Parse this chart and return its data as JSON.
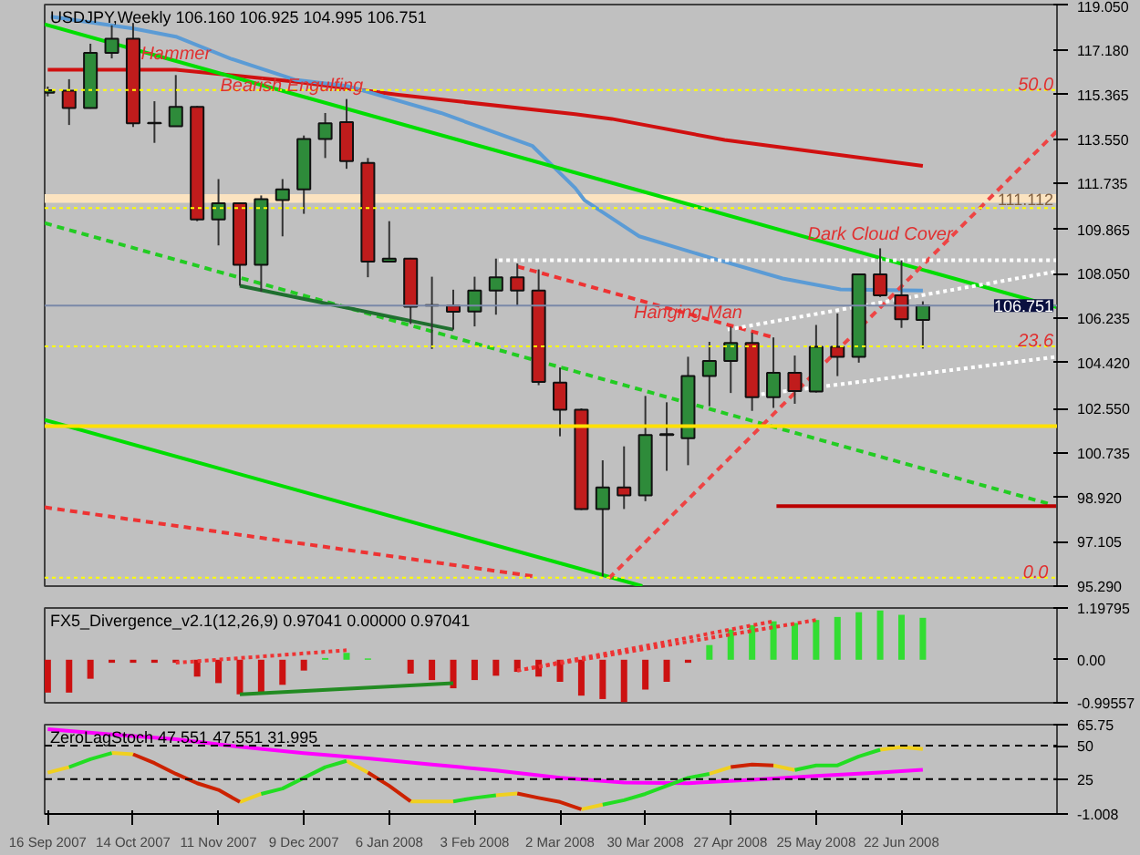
{
  "chart_data": [
    {
      "type": "candlestick",
      "title": "USDJPY,Weekly  106.160 106.925 104.995 106.751",
      "tick_labels": "y",
      "x": [
        "2007-09-16",
        "2007-09-23",
        "2007-09-30",
        "2007-10-07",
        "2007-10-14",
        "2007-10-21",
        "2007-10-28",
        "2007-11-04",
        "2007-11-11",
        "2007-11-18",
        "2007-11-25",
        "2007-12-02",
        "2007-12-09",
        "2007-12-16",
        "2007-12-23",
        "2007-12-30",
        "2008-01-06",
        "2008-01-13",
        "2008-01-20",
        "2008-01-27",
        "2008-02-03",
        "2008-02-10",
        "2008-02-17",
        "2008-02-24",
        "2008-03-02",
        "2008-03-09",
        "2008-03-16",
        "2008-03-23",
        "2008-03-30",
        "2008-04-06",
        "2008-04-13",
        "2008-04-20",
        "2008-04-27",
        "2008-05-04",
        "2008-05-11",
        "2008-05-18",
        "2008-05-25",
        "2008-06-01",
        "2008-06-08",
        "2008-06-15",
        "2008-06-22",
        "2008-06-29"
      ],
      "ohlc": [
        [
          115.45,
          115.7,
          115.3,
          115.55
        ],
        [
          115.53,
          116.0,
          114.13,
          114.82
        ],
        [
          114.82,
          117.45,
          114.8,
          117.08
        ],
        [
          117.08,
          118.2,
          116.85,
          117.65
        ],
        [
          117.65,
          118.3,
          114.05,
          114.2
        ],
        [
          114.2,
          115.1,
          113.4,
          114.22
        ],
        [
          114.08,
          116.17,
          114.08,
          114.87
        ],
        [
          114.87,
          114.9,
          110.2,
          110.27
        ],
        [
          110.27,
          111.92,
          109.21,
          110.93
        ],
        [
          110.93,
          110.93,
          107.56,
          108.42
        ],
        [
          108.42,
          111.25,
          107.32,
          111.1
        ],
        [
          111.06,
          111.92,
          109.58,
          111.5
        ],
        [
          111.5,
          113.7,
          110.5,
          113.56
        ],
        [
          113.56,
          114.62,
          112.78,
          114.2
        ],
        [
          114.25,
          115.19,
          112.34,
          112.65
        ],
        [
          112.58,
          112.78,
          107.91,
          108.55
        ],
        [
          108.55,
          110.2,
          108.55,
          108.67
        ],
        [
          108.67,
          108.7,
          106.0,
          106.7
        ],
        [
          106.75,
          107.93,
          104.98,
          106.77
        ],
        [
          106.75,
          107.4,
          105.77,
          106.5
        ],
        [
          106.51,
          107.93,
          105.9,
          107.37
        ],
        [
          107.37,
          108.67,
          106.38,
          107.91
        ],
        [
          107.91,
          108.47,
          106.75,
          107.37
        ],
        [
          107.37,
          108.23,
          103.5,
          103.63
        ],
        [
          103.6,
          104.22,
          101.41,
          102.5
        ],
        [
          102.5,
          102.55,
          98.4,
          98.44
        ],
        [
          98.44,
          100.43,
          95.68,
          99.32
        ],
        [
          99.32,
          101.0,
          98.44,
          99.0
        ],
        [
          99.0,
          103.06,
          98.76,
          101.46
        ],
        [
          101.46,
          102.8,
          100.0,
          101.5
        ],
        [
          101.33,
          104.66,
          100.23,
          103.87
        ],
        [
          103.87,
          105.27,
          102.64,
          104.49
        ],
        [
          104.49,
          105.89,
          103.18,
          105.22
        ],
        [
          105.22,
          105.64,
          102.45,
          103.01
        ],
        [
          103.01,
          105.45,
          102.57,
          104.0
        ],
        [
          104.0,
          104.71,
          102.74,
          103.26
        ],
        [
          103.24,
          105.96,
          103.2,
          105.07
        ],
        [
          105.07,
          106.43,
          103.87,
          104.66
        ],
        [
          104.66,
          108.06,
          104.42,
          108.03
        ],
        [
          108.03,
          109.09,
          107.1,
          107.17
        ],
        [
          107.17,
          108.6,
          105.84,
          106.19
        ],
        [
          106.16,
          106.925,
          104.995,
          106.751
        ]
      ],
      "colors": [
        "#2e8b3a",
        "#c01c1c",
        "#2e8b3a",
        "#2e8b3a",
        "#c01c1c",
        "#c01c1c",
        "#2e8b3a",
        "#c01c1c",
        "#2e8b3a",
        "#c01c1c",
        "#2e8b3a",
        "#2e8b3a",
        "#2e8b3a",
        "#2e8b3a",
        "#c01c1c",
        "#c01c1c",
        "#2e8b3a",
        "#c01c1c",
        "#2e8b3a",
        "#c01c1c",
        "#2e8b3a",
        "#2e8b3a",
        "#c01c1c",
        "#c01c1c",
        "#c01c1c",
        "#c01c1c",
        "#2e8b3a",
        "#c01c1c",
        "#2e8b3a",
        "#2e8b3a",
        "#2e8b3a",
        "#2e8b3a",
        "#2e8b3a",
        "#c01c1c",
        "#2e8b3a",
        "#c01c1c",
        "#2e8b3a",
        "#c01c1c",
        "#2e8b3a",
        "#c01c1c",
        "#c01c1c",
        "#2e8b3a"
      ],
      "series": [
        {
          "type": "line",
          "color": "#d01010",
          "line_style": "solid",
          "x": [
            "2007-09-16",
            "2007-10-28",
            "2007-12-06",
            "2008-01-09",
            "2008-03-07",
            "2008-03-19",
            "2008-04-25",
            "2008-06-29"
          ],
          "values": [
            116.39,
            116.39,
            115.9,
            115.36,
            114.57,
            114.38,
            113.52,
            112.46
          ]
        },
        {
          "type": "line",
          "color": "#5b9bd5",
          "line_style": "solid",
          "x": [
            "2007-09-17",
            "2007-10-14",
            "2007-10-28",
            "2007-11-15",
            "2007-12-06",
            "2007-12-23",
            "2008-01-23",
            "2008-02-22",
            "2008-03-07",
            "2008-03-10",
            "2008-03-28",
            "2008-04-20",
            "2008-05-14",
            "2008-06-02",
            "2008-06-29"
          ],
          "values": [
            118.56,
            118.07,
            117.74,
            116.84,
            115.98,
            115.73,
            114.62,
            113.27,
            111.55,
            111.06,
            109.58,
            108.72,
            107.86,
            107.41,
            107.37
          ]
        },
        {
          "type": "line",
          "color": "#00dd00",
          "line_style": "solid",
          "x": [
            "2007-09-15",
            "2008-08-12"
          ],
          "values": [
            118.24,
            106.68
          ]
        },
        {
          "type": "line",
          "color": "#00dd00",
          "line_style": "solid",
          "x": [
            "2007-09-15",
            "2008-03-29"
          ],
          "values": [
            102.08,
            95.29
          ]
        },
        {
          "type": "line",
          "color": "#22cc22",
          "line_style": "dashed",
          "x": [
            "2007-09-15",
            "2008-08-10"
          ],
          "values": [
            110.12,
            98.63
          ]
        },
        {
          "type": "line",
          "color": "#ee3333",
          "line_style": "dashed",
          "x": [
            "2007-09-15",
            "2008-02-23"
          ],
          "values": [
            98.51,
            95.68
          ]
        },
        {
          "type": "line",
          "color": "#ee4444",
          "line_style": "dashed",
          "x": [
            "2008-03-18",
            "2008-08-12"
          ],
          "values": [
            95.6,
            113.88
          ]
        },
        {
          "type": "line",
          "color": "#ee3333",
          "line_style": "dashed",
          "x": [
            "2008-02-17",
            "2008-05-11"
          ],
          "values": [
            108.35,
            105.45
          ]
        },
        {
          "type": "line",
          "color": "#ffffff",
          "line_style": "dotted",
          "x": [
            "2008-04-26",
            "2008-08-12"
          ],
          "values": [
            105.77,
            108.15
          ]
        },
        {
          "type": "line",
          "color": "#ffffff",
          "line_style": "dotted",
          "x": [
            "2008-05-07",
            "2008-08-12"
          ],
          "values": [
            103.13,
            104.66
          ]
        },
        {
          "type": "line",
          "color": "#ffffff",
          "line_style": "dotted",
          "x": [
            "2008-02-11",
            "2008-08-12"
          ],
          "values": [
            108.6,
            108.6
          ]
        },
        {
          "type": "line",
          "color": "#bb0000",
          "line_style": "solid",
          "x": [
            "2008-05-12",
            "2008-08-12"
          ],
          "values": [
            98.56,
            98.56
          ]
        },
        {
          "type": "line",
          "color": "#1f6f2f",
          "line_style": "solid",
          "x": [
            "2007-11-18",
            "2008-01-27"
          ],
          "values": [
            107.56,
            105.77
          ]
        }
      ],
      "ref_lines": [
        {
          "axis": "y",
          "value": 115.56,
          "color": "#ffff00",
          "line_style": "dotted"
        },
        {
          "axis": "y",
          "value": 110.74,
          "color": "#ffff00",
          "line_style": "dotted"
        },
        {
          "axis": "y",
          "value": 105.08,
          "color": "#ffff00",
          "line_style": "dotted"
        },
        {
          "axis": "y",
          "value": 95.63,
          "color": "#ffff00",
          "line_style": "dotted"
        },
        {
          "axis": "y",
          "value": 101.83,
          "color": "#ffe000",
          "line_style": "solid"
        },
        {
          "axis": "y",
          "value": 106.751,
          "label": "106.751",
          "color": "#7a88a8",
          "line_style": "solid"
        }
      ],
      "bands": [
        {
          "axis": "y",
          "from": 110.95,
          "to": 111.3,
          "label": "111.112",
          "color": "#fbe3c0"
        }
      ],
      "annotations": [
        {
          "text": "Hammer",
          "x": "2007-10-28",
          "y": 116.6
        },
        {
          "text": "Bearish Engulfing",
          "x": "2007-12-05",
          "y": 115.3
        },
        {
          "text": "Hanging Man",
          "x": "2008-04-13",
          "y": 106.0
        },
        {
          "text": "Dark Cloud Cover",
          "x": "2008-06-15",
          "y": 109.2
        },
        {
          "text": "50.0",
          "x": "2008-08-05",
          "y": 115.56
        },
        {
          "text": "23.6",
          "x": "2008-08-05",
          "y": 105.08
        },
        {
          "text": "0.0",
          "x": "2008-08-05",
          "y": 95.63
        }
      ],
      "xlim": [
        "2007-09-15",
        "2008-08-12"
      ],
      "ylim": [
        95.29,
        119.05
      ],
      "yticks": [
        {
          "value": 119.05,
          "label": "119.050"
        },
        {
          "value": 117.18,
          "label": "117.180"
        },
        {
          "value": 115.365,
          "label": "115.365"
        },
        {
          "value": 113.55,
          "label": "113.550"
        },
        {
          "value": 111.735,
          "label": "111.735"
        },
        {
          "value": 109.865,
          "label": "109.865"
        },
        {
          "value": 108.05,
          "label": "108.050"
        },
        {
          "value": 106.235,
          "label": "106.235"
        },
        {
          "value": 104.42,
          "label": "104.420"
        },
        {
          "value": 102.55,
          "label": "102.550"
        },
        {
          "value": 100.735,
          "label": "100.735"
        },
        {
          "value": 98.92,
          "label": "98.920"
        },
        {
          "value": 97.105,
          "label": "97.105"
        },
        {
          "value": 95.29,
          "label": "95.290"
        }
      ]
    },
    {
      "type": "bar",
      "title": "FX5_Divergence_v2.1(12,26,9) 0.97041 0.00000 0.97041",
      "tick_labels": "y",
      "x": [
        "2007-09-16",
        "2007-09-23",
        "2007-09-30",
        "2007-10-07",
        "2007-10-14",
        "2007-10-21",
        "2007-10-28",
        "2007-11-04",
        "2007-11-11",
        "2007-11-18",
        "2007-11-25",
        "2007-12-02",
        "2007-12-09",
        "2007-12-16",
        "2007-12-23",
        "2007-12-30",
        "2008-01-06",
        "2008-01-13",
        "2008-01-20",
        "2008-01-27",
        "2008-02-03",
        "2008-02-10",
        "2008-02-17",
        "2008-02-24",
        "2008-03-02",
        "2008-03-09",
        "2008-03-16",
        "2008-03-23",
        "2008-03-30",
        "2008-04-06",
        "2008-04-13",
        "2008-04-20",
        "2008-04-27",
        "2008-05-04",
        "2008-05-11",
        "2008-05-18",
        "2008-05-25",
        "2008-06-01",
        "2008-06-08",
        "2008-06-15",
        "2008-06-22",
        "2008-06-29"
      ],
      "series": [
        {
          "type": "bar",
          "values": [
            -0.76,
            -0.76,
            -0.44,
            -0.07,
            -0.07,
            -0.07,
            -0.07,
            -0.39,
            -0.54,
            -0.8,
            -0.76,
            -0.58,
            -0.25,
            0.04,
            0.16,
            0.03,
            null,
            -0.32,
            -0.47,
            -0.66,
            -0.47,
            -0.37,
            -0.28,
            -0.39,
            -0.51,
            -0.83,
            -0.91,
            -0.98,
            -0.69,
            -0.51,
            -0.07,
            0.34,
            0.7,
            0.8,
            0.89,
            0.85,
            0.92,
            0.99,
            1.1,
            1.14,
            1.04,
            0.97
          ],
          "colors": [
            "#cc1111",
            "#cc1111",
            "#cc1111",
            "#cc1111",
            "#cc1111",
            "#cc1111",
            "#cc1111",
            "#cc1111",
            "#cc1111",
            "#cc1111",
            "#cc1111",
            "#cc1111",
            "#cc1111",
            "#33dd33",
            "#33dd33",
            "#33dd33",
            "#cc1111",
            "#cc1111",
            "#cc1111",
            "#cc1111",
            "#cc1111",
            "#cc1111",
            "#cc1111",
            "#cc1111",
            "#cc1111",
            "#cc1111",
            "#cc1111",
            "#cc1111",
            "#cc1111",
            "#cc1111",
            "#cc1111",
            "#33dd33",
            "#33dd33",
            "#33dd33",
            "#33dd33",
            "#33dd33",
            "#33dd33",
            "#33dd33",
            "#33dd33",
            "#33dd33",
            "#33dd33",
            "#33dd33"
          ]
        },
        {
          "type": "line",
          "color": "#ee3333",
          "line_style": "dotted",
          "x": [
            "2007-10-28",
            "2007-12-23"
          ],
          "values": [
            -0.07,
            0.22
          ]
        },
        {
          "type": "line",
          "color": "#228b22",
          "line_style": "solid",
          "x": [
            "2007-11-18",
            "2008-01-27"
          ],
          "values": [
            -0.8,
            -0.54
          ]
        },
        {
          "type": "line",
          "color": "#ee3333",
          "line_style": "dotted",
          "x": [
            "2008-02-17",
            "2008-05-11"
          ],
          "values": [
            -0.25,
            0.89
          ]
        },
        {
          "type": "line",
          "color": "#ee3333",
          "line_style": "dotted",
          "x": [
            "2008-02-17",
            "2008-05-25"
          ],
          "values": [
            -0.25,
            0.92
          ]
        }
      ],
      "xlim": [
        "2007-09-15",
        "2008-08-12"
      ],
      "ylim": [
        -0.99557,
        1.19795
      ],
      "yticks": [
        {
          "value": 1.19795,
          "label": "1.19795"
        },
        {
          "value": 0,
          "label": "0.00"
        },
        {
          "value": -0.99557,
          "label": "-0.99557"
        }
      ]
    },
    {
      "type": "line",
      "title": "ZeroLagStoch 47.551 47.551 31.995",
      "x": [
        "2007-09-16",
        "2007-09-23",
        "2007-09-30",
        "2007-10-07",
        "2007-10-14",
        "2007-10-21",
        "2007-10-28",
        "2007-11-04",
        "2007-11-11",
        "2007-11-18",
        "2007-11-25",
        "2007-12-02",
        "2007-12-09",
        "2007-12-16",
        "2007-12-23",
        "2007-12-30",
        "2008-01-06",
        "2008-01-13",
        "2008-01-20",
        "2008-01-27",
        "2008-02-03",
        "2008-02-10",
        "2008-02-17",
        "2008-02-24",
        "2008-03-02",
        "2008-03-09",
        "2008-03-16",
        "2008-03-23",
        "2008-03-30",
        "2008-04-06",
        "2008-04-13",
        "2008-04-20",
        "2008-04-27",
        "2008-05-04",
        "2008-05-11",
        "2008-05-18",
        "2008-05-25",
        "2008-06-01",
        "2008-06-08",
        "2008-06-15",
        "2008-06-22",
        "2008-06-29"
      ],
      "series": [
        {
          "color": "#ff00ff",
          "x": [
            "2007-09-16",
            "2007-10-07",
            "2007-10-28",
            "2007-11-18",
            "2007-12-09",
            "2007-12-30",
            "2008-01-20",
            "2008-02-10",
            "2008-03-02",
            "2008-03-23",
            "2008-04-13",
            "2008-05-04",
            "2008-05-25",
            "2008-06-15",
            "2008-06-29"
          ],
          "values": [
            62.3,
            58.5,
            54.8,
            49.2,
            44.5,
            40.5,
            36,
            31.5,
            26,
            22.5,
            22,
            24.5,
            27.5,
            30,
            31.995
          ]
        },
        {
          "color": "#f0d020",
          "values": [
            29.9,
            34,
            null,
            44.6,
            43.6,
            null,
            null,
            null,
            null,
            8,
            14,
            null,
            null,
            null,
            38.7,
            30,
            null,
            8.4,
            8.4,
            8.4,
            null,
            13,
            14.3,
            null,
            null,
            2.5,
            6,
            null,
            null,
            null,
            null,
            29,
            34,
            null,
            35.3,
            31.9,
            null,
            null,
            null,
            47,
            49,
            47.55
          ]
        },
        {
          "color": "#22dd22",
          "values": [
            null,
            34,
            40,
            44.6,
            null,
            null,
            null,
            null,
            null,
            null,
            14,
            18,
            26,
            34,
            38.7,
            null,
            null,
            null,
            null,
            8.4,
            11,
            13,
            null,
            null,
            null,
            null,
            6,
            9.3,
            14,
            20,
            26,
            29,
            null,
            null,
            null,
            31.9,
            35.3,
            35.3,
            42,
            47,
            null,
            null
          ]
        },
        {
          "color": "#cc2200",
          "values": [
            null,
            null,
            null,
            null,
            43.6,
            37,
            29,
            22,
            17,
            8,
            null,
            null,
            null,
            null,
            null,
            30,
            20,
            8.4,
            null,
            null,
            null,
            null,
            14.3,
            11,
            8,
            2.5,
            null,
            null,
            null,
            null,
            null,
            null,
            34,
            36,
            35.3,
            null,
            null,
            null,
            null,
            null,
            null,
            null
          ]
        }
      ],
      "ref_lines": [
        {
          "axis": "y",
          "value": 50,
          "color": "#000000",
          "line_style": "dashed"
        },
        {
          "axis": "y",
          "value": 25,
          "color": "#000000",
          "line_style": "dashed"
        }
      ],
      "xlim": [
        "2007-09-15",
        "2008-08-12"
      ],
      "ylim": [
        -1.008,
        65.75
      ],
      "yticks": [
        65.75,
        50,
        25,
        -1.008
      ],
      "xticks": [
        {
          "value": "2007-09-16",
          "label": "16 Sep 2007"
        },
        {
          "value": "2007-10-14",
          "label": "14 Oct 2007"
        },
        {
          "value": "2007-11-11",
          "label": "11 Nov 2007"
        },
        {
          "value": "2007-12-09",
          "label": "9 Dec 2007"
        },
        {
          "value": "2008-01-06",
          "label": "6 Jan 2008"
        },
        {
          "value": "2008-02-03",
          "label": "3 Feb 2008"
        },
        {
          "value": "2008-03-02",
          "label": "2 Mar 2008"
        },
        {
          "value": "2008-03-30",
          "label": "30 Mar 2008"
        },
        {
          "value": "2008-04-27",
          "label": "27 Apr 2008"
        },
        {
          "value": "2008-05-25",
          "label": "25 May 2008"
        },
        {
          "value": "2008-06-22",
          "label": "22 Jun 2008"
        }
      ]
    }
  ]
}
